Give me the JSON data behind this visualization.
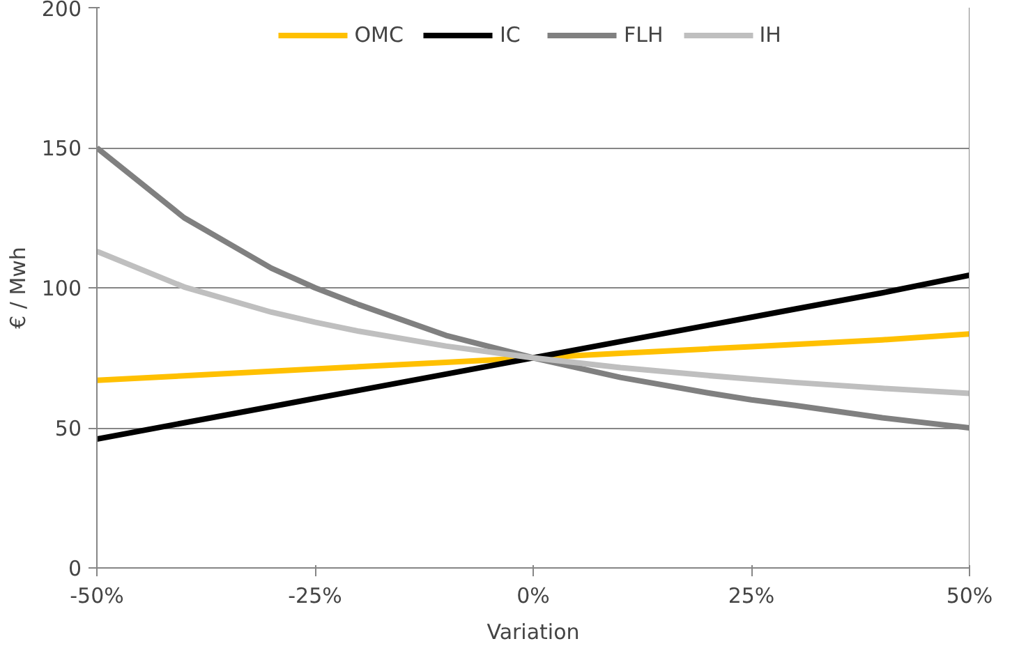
{
  "chart_data": {
    "type": "line",
    "xlabel": "Variation",
    "ylabel": "€ / Mwh",
    "x": [
      -50,
      -40,
      -30,
      -25,
      -20,
      -10,
      0,
      10,
      20,
      25,
      30,
      40,
      50
    ],
    "series": [
      {
        "name": "OMC",
        "color": "#ffc000",
        "values": [
          67,
          68.6,
          70.2,
          71,
          71.8,
          73.4,
          75,
          76.6,
          78.2,
          79,
          79.8,
          81.4,
          83.5
        ]
      },
      {
        "name": "IC",
        "color": "#000000",
        "values": [
          46,
          51.8,
          57.6,
          60.5,
          63.4,
          69.2,
          75,
          80.8,
          86.6,
          89.5,
          92.4,
          98.2,
          104.5
        ]
      },
      {
        "name": "FLH",
        "color": "#808080",
        "values": [
          150,
          125,
          107,
          100,
          94,
          83,
          75,
          68,
          62.5,
          60,
          58,
          53.6,
          50
        ]
      },
      {
        "name": "IH",
        "color": "#bfbfbf",
        "values": [
          113,
          100.3,
          91.3,
          87.7,
          84.5,
          79.2,
          75,
          71.5,
          68.7,
          67.4,
          66.2,
          64.1,
          62.3
        ]
      }
    ],
    "xlim": [
      -50,
      50
    ],
    "xticks": [
      {
        "value": -50,
        "label": "-50%"
      },
      {
        "value": -25,
        "label": "-25%"
      },
      {
        "value": 0,
        "label": "0%"
      },
      {
        "value": 25,
        "label": "25%"
      },
      {
        "value": 50,
        "label": "50%"
      }
    ],
    "ylim": [
      0,
      200
    ],
    "yticks": [
      0,
      50,
      100,
      150,
      200
    ],
    "grid": "y",
    "legend": "top",
    "marker": "none",
    "line_style": "solid"
  }
}
